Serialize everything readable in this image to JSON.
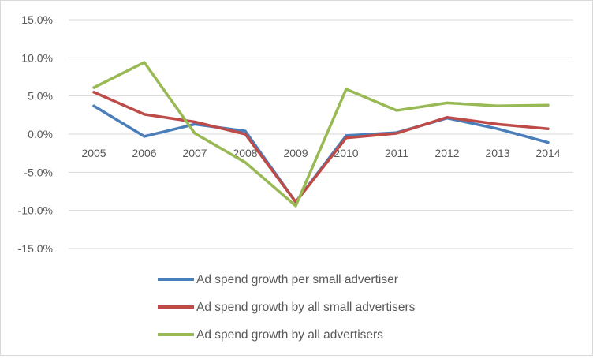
{
  "chart_data": {
    "type": "line",
    "title": "",
    "xlabel": "",
    "ylabel": "",
    "categories": [
      "2005",
      "2006",
      "2007",
      "2008",
      "2009",
      "2010",
      "2011",
      "2012",
      "2013",
      "2014"
    ],
    "ylim": [
      -15,
      15
    ],
    "yticks": [
      15,
      10,
      5,
      0,
      -5,
      -10,
      -15
    ],
    "ytick_labels": [
      "15.0%",
      "10.0%",
      "5.0%",
      "0.0%",
      "-5.0%",
      "-10.0%",
      "-15.0%"
    ],
    "grid": true,
    "legend_position": "bottom",
    "series": [
      {
        "name": "Ad spend growth per small advertiser",
        "color": "#4a7ebb",
        "values": [
          3.7,
          -0.3,
          1.3,
          0.4,
          -8.9,
          -0.2,
          0.2,
          2.1,
          0.7,
          -1.1
        ]
      },
      {
        "name": "Ad spend growth by all small advertisers",
        "color": "#be4b48",
        "values": [
          5.5,
          2.6,
          1.6,
          0.0,
          -8.9,
          -0.5,
          0.1,
          2.2,
          1.3,
          0.7
        ]
      },
      {
        "name": "Ad spend growth by all advertisers",
        "color": "#98b954",
        "values": [
          6.1,
          9.4,
          0.1,
          -3.7,
          -9.4,
          5.9,
          3.1,
          4.1,
          3.7,
          3.8
        ]
      }
    ]
  }
}
